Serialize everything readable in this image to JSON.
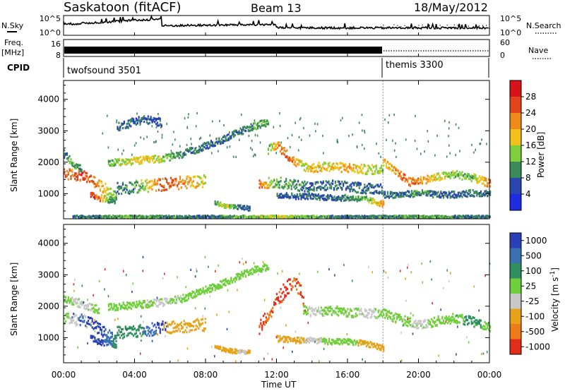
{
  "header": {
    "radar": "Saskatoon (fitACF)",
    "beam": "Beam 13",
    "date": "18/May/2012"
  },
  "nsky_panel": {
    "left_label": "N.Sky",
    "left_ticks": [
      "10^5",
      "10^0"
    ],
    "right_ticks": [
      "10^5",
      "10^0"
    ],
    "right_label": "N.Search"
  },
  "freq_panel": {
    "left_label_1": "Freq.",
    "left_label_2": "[MHz]",
    "left_ticks": [
      "16",
      "8"
    ],
    "right_ticks": [
      "60",
      "0"
    ],
    "right_label": "Nave"
  },
  "cpid": {
    "label": "CPID",
    "modes": [
      {
        "name": "twofsound 3501",
        "start_hour": 0,
        "end_hour": 18
      },
      {
        "name": "themis 3300",
        "start_hour": 18,
        "end_hour": 24
      }
    ]
  },
  "time_axis": {
    "label": "Time UT",
    "tick_labels": [
      "00:00",
      "04:00",
      "08:00",
      "12:00",
      "16:00",
      "20:00",
      "00:00"
    ]
  },
  "colors": {
    "power": [
      "#1f2be0",
      "#2a44b0",
      "#3a8a5a",
      "#7fcf3a",
      "#f2c21a",
      "#f08a1a",
      "#e2451a",
      "#d8121a"
    ],
    "velocity": [
      "#2b3fb8",
      "#3a6fb0",
      "#2f8f5e",
      "#6fcf3a",
      "#c8c8c8",
      "#e8a21a",
      "#ef7a1a",
      "#e22d1a"
    ]
  },
  "chart_data": [
    {
      "type": "heatmap",
      "title": "Power",
      "ylabel": "Slant Range [km]",
      "xlabel": "Time UT",
      "x_unit": "hours UT",
      "xlim": [
        0,
        24
      ],
      "ylim": [
        200,
        4600
      ],
      "yticks": [
        1000,
        2000,
        3000,
        4000
      ],
      "colorbar": {
        "label": "Power [dB]",
        "ticks": [
          "4",
          "8",
          "12",
          "16",
          "20",
          "24",
          "28"
        ],
        "range": [
          0,
          32
        ]
      },
      "bands": [
        {
          "t": [
            0.0,
            0.5,
            1.0,
            1.5,
            2.0,
            2.5,
            3.0
          ],
          "r": [
            1650,
            1650,
            1600,
            1500,
            1300,
            1100,
            1000
          ],
          "w": 350,
          "v": [
            26,
            22,
            26,
            24,
            20,
            16,
            12
          ]
        },
        {
          "t": [
            0.0,
            0.5,
            1.0
          ],
          "r": [
            2300,
            2000,
            1800
          ],
          "w": 250,
          "v": [
            8,
            12,
            8
          ]
        },
        {
          "t": [
            1.5,
            2.0,
            2.5,
            3.0
          ],
          "r": [
            1000,
            900,
            850,
            800
          ],
          "w": 200,
          "v": [
            28,
            24,
            12,
            8
          ]
        },
        {
          "t": [
            2.5,
            3.5,
            4.5,
            5.5,
            6.5,
            7.5,
            8.5,
            9.5,
            10.5,
            11.5
          ],
          "r": [
            2000,
            2050,
            2100,
            2150,
            2250,
            2450,
            2650,
            2900,
            3150,
            3300
          ],
          "w": 230,
          "v": [
            12,
            16,
            18,
            14,
            10,
            8,
            8,
            8,
            10,
            12
          ]
        },
        {
          "t": [
            3.0,
            4.0,
            5.0,
            6.0,
            7.0,
            8.0
          ],
          "r": [
            1200,
            1250,
            1300,
            1350,
            1400,
            1450
          ],
          "w": 400,
          "v": [
            8,
            10,
            20,
            26,
            20,
            16
          ]
        },
        {
          "t": [
            3.0,
            3.5,
            4.0,
            4.5,
            5.0,
            5.5
          ],
          "r": [
            3150,
            3250,
            3350,
            3400,
            3350,
            3300
          ],
          "w": 250,
          "v": [
            8,
            8,
            6,
            8,
            6,
            6
          ]
        },
        {
          "t": [
            8.5,
            9.0,
            9.5,
            10.0,
            10.5
          ],
          "r": [
            750,
            650,
            600,
            600,
            550
          ],
          "w": 130,
          "v": [
            12,
            16,
            12,
            8,
            8
          ]
        },
        {
          "t": [
            11.0,
            12.0,
            13.0,
            14.0,
            15.0,
            16.0,
            17.0,
            18.0
          ],
          "r": [
            1350,
            1400,
            1300,
            1250,
            1300,
            1250,
            1200,
            1200
          ],
          "w": 330,
          "v": [
            24,
            12,
            10,
            8,
            8,
            8,
            8,
            8
          ]
        },
        {
          "t": [
            11.5,
            12.0,
            12.5,
            13.0,
            13.5,
            14.0,
            15.0,
            16.0,
            17.0,
            18.0
          ],
          "r": [
            2400,
            2600,
            2300,
            2050,
            1900,
            1850,
            1900,
            1850,
            1800,
            1800
          ],
          "w": 300,
          "v": [
            12,
            22,
            24,
            20,
            16,
            18,
            18,
            20,
            16,
            14
          ]
        },
        {
          "t": [
            12.0,
            13.0,
            14.0,
            15.0,
            16.0,
            17.0,
            18.0
          ],
          "r": [
            1000,
            950,
            950,
            900,
            900,
            850,
            700
          ],
          "w": 180,
          "v": [
            8,
            8,
            8,
            8,
            10,
            12,
            22
          ]
        },
        {
          "t": [
            18.0,
            18.5,
            19.0,
            19.5,
            20.0,
            20.5,
            21.0,
            22.0,
            23.0,
            24.0
          ],
          "r": [
            2050,
            1800,
            1600,
            1400,
            1450,
            1500,
            1550,
            1650,
            1550,
            1350
          ],
          "w": 250,
          "v": [
            18,
            20,
            24,
            24,
            22,
            20,
            16,
            14,
            12,
            24
          ]
        },
        {
          "t": [
            18.0,
            19.0,
            20.0,
            21.0,
            22.0,
            23.0,
            24.0
          ],
          "r": [
            1000,
            1000,
            1050,
            1000,
            1000,
            1050,
            1050
          ],
          "w": 200,
          "v": [
            8,
            8,
            10,
            8,
            8,
            8,
            8
          ]
        },
        {
          "t": [
            0.5,
            4.0,
            8.0,
            12.0,
            16.0,
            20.0,
            24.0
          ],
          "r": [
            300,
            300,
            300,
            300,
            300,
            300,
            300
          ],
          "w": 70,
          "v": [
            8,
            12,
            8,
            16,
            8,
            12,
            8
          ]
        }
      ],
      "speckle": [
        {
          "t_range": [
            2.0,
            24.0
          ],
          "r_range": [
            2200,
            3600
          ],
          "v": 8,
          "n": 160
        }
      ]
    },
    {
      "type": "heatmap",
      "title": "Velocity",
      "ylabel": "Slant Range [km]",
      "xlabel": "Time UT",
      "x_unit": "hours UT",
      "xlim": [
        0,
        24
      ],
      "ylim": [
        200,
        4600
      ],
      "yticks": [
        1000,
        2000,
        3000,
        4000
      ],
      "colorbar": {
        "label": "Velocity [m s^-1]",
        "ticks": [
          "1000",
          "500",
          "100",
          "25",
          "-25",
          "-100",
          "-500",
          "-1000"
        ]
      },
      "class_order": [
        "1000",
        "500",
        "100",
        "25",
        "-25",
        "-100",
        "-500",
        "-1000"
      ],
      "bands": [
        {
          "t": [
            0.0,
            0.5,
            1.0,
            1.5,
            2.0,
            2.5,
            3.0
          ],
          "r": [
            1650,
            1650,
            1600,
            1500,
            1300,
            1100,
            1000
          ],
          "w": 350,
          "v": [
            "25",
            "-25",
            "500",
            "1000",
            "1000",
            "500",
            "100"
          ]
        },
        {
          "t": [
            1.5,
            2.0,
            2.5,
            3.0
          ],
          "r": [
            1000,
            900,
            850,
            800
          ],
          "w": 200,
          "v": [
            "1000",
            "1000",
            "500",
            "100"
          ]
        },
        {
          "t": [
            2.5,
            3.5,
            4.5,
            5.5,
            6.5,
            7.5,
            8.5,
            9.5,
            10.5,
            11.5
          ],
          "r": [
            2000,
            2050,
            2100,
            2150,
            2250,
            2450,
            2650,
            2900,
            3150,
            3300
          ],
          "w": 230,
          "v": [
            "25",
            "25",
            "25",
            "-25",
            "25",
            "25",
            "25",
            "25",
            "25",
            "25"
          ]
        },
        {
          "t": [
            3.0,
            4.0,
            5.0,
            5.5,
            6.0,
            7.0,
            8.0
          ],
          "r": [
            1200,
            1250,
            1300,
            1350,
            1350,
            1400,
            1450
          ],
          "w": 400,
          "v": [
            "100",
            "100",
            "500",
            "1000",
            "-100",
            "-100",
            "-100"
          ]
        },
        {
          "t": [
            8.5,
            9.0,
            9.5,
            10.0,
            10.5
          ],
          "r": [
            750,
            650,
            600,
            600,
            550
          ],
          "w": 130,
          "v": [
            "-100",
            "-100",
            "-100",
            "-25",
            "-100"
          ]
        },
        {
          "t": [
            11.0,
            11.5,
            12.0,
            12.5,
            13.0,
            13.5
          ],
          "r": [
            1350,
            1700,
            2200,
            2600,
            2900,
            2300
          ],
          "w": 500,
          "v": [
            "-1000",
            "-500",
            "-1000",
            "-1000",
            "-500",
            "-1000"
          ]
        },
        {
          "t": [
            12.0,
            13.0,
            14.0,
            15.0,
            16.0,
            17.0,
            18.0
          ],
          "r": [
            1000,
            950,
            950,
            900,
            900,
            850,
            700
          ],
          "w": 180,
          "v": [
            "-100",
            "-100",
            "-25",
            "25",
            "25",
            "-100",
            "-100"
          ]
        },
        {
          "t": [
            13.5,
            14.0,
            15.0,
            16.0,
            17.0,
            18.0,
            19.0,
            20.0,
            21.0,
            22.0,
            23.0,
            24.0
          ],
          "r": [
            1900,
            1850,
            1900,
            1850,
            1800,
            1800,
            1600,
            1450,
            1550,
            1650,
            1550,
            1350
          ],
          "w": 300,
          "v": [
            "25",
            "-25",
            "25",
            "25",
            "-25",
            "25",
            "25",
            "-25",
            "25",
            "25",
            "100",
            "25"
          ]
        },
        {
          "t": [
            0.0,
            1.0,
            2.0
          ],
          "r": [
            2300,
            2100,
            1900
          ],
          "w": 250,
          "v": [
            "25",
            "-25",
            "25"
          ]
        }
      ],
      "speckle": [
        {
          "t_range": [
            0.5,
            24.0
          ],
          "r_range": [
            200,
            3600
          ],
          "v": "-100",
          "n": 140
        }
      ]
    }
  ]
}
